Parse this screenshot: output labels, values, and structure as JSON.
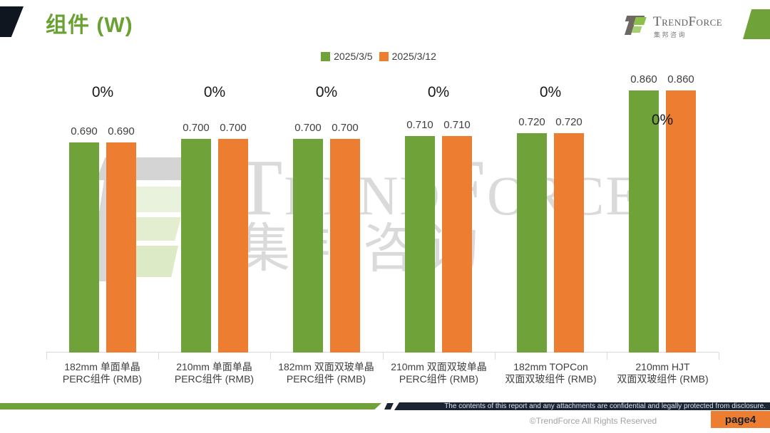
{
  "slide": {
    "title": "组件 (W)",
    "logo": {
      "name": "TrendForce",
      "cn": "集邦咨询"
    },
    "watermark": {
      "line1": "TrendForce",
      "line2": "集邦咨询"
    },
    "footer": {
      "confidential": "The contents of this report and any attachments are confidential and legally protected from disclosure.",
      "copyright": "©TrendForce All Rights Reserved",
      "page": "page4"
    },
    "colors": {
      "accent_green": "#6fa33a",
      "accent_orange": "#ed7d31",
      "title_green": "#69a233",
      "dark_navy": "#1a2433"
    }
  },
  "chart_data": {
    "type": "bar",
    "title": "组件 (W)",
    "legend_position": "top",
    "y_axis": "hidden",
    "ylim": [
      0,
      0.9
    ],
    "grid": false,
    "categories": [
      [
        "182mm 单面单晶",
        "PERC组件 (RMB)"
      ],
      [
        "210mm 单面单晶",
        "PERC组件 (RMB)"
      ],
      [
        "182mm 双面双玻单晶",
        "PERC组件 (RMB)"
      ],
      [
        "210mm 双面双玻单晶",
        "PERC组件 (RMB)"
      ],
      [
        "182mm TOPCon",
        "双面双玻组件 (RMB)"
      ],
      [
        "210mm HJT",
        "双面双玻组件 (RMB)"
      ]
    ],
    "series": [
      {
        "name": "2025/3/5",
        "color": "#6fa33a",
        "values": [
          0.69,
          0.7,
          0.7,
          0.71,
          0.72,
          0.86
        ]
      },
      {
        "name": "2025/3/12",
        "color": "#ed7d31",
        "values": [
          0.69,
          0.7,
          0.7,
          0.71,
          0.72,
          0.86
        ]
      }
    ],
    "change_labels": [
      "0%",
      "0%",
      "0%",
      "0%",
      "0%",
      "0%"
    ],
    "value_decimals": 3
  }
}
